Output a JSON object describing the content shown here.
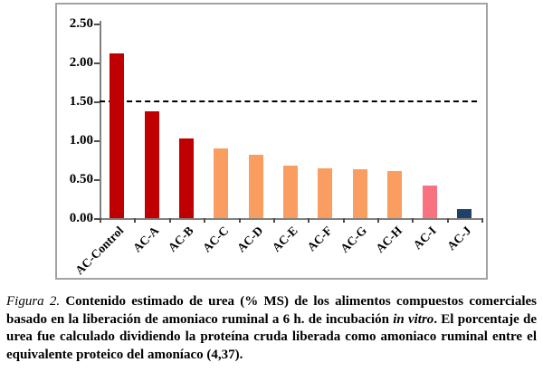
{
  "chart_data": {
    "type": "bar",
    "categories": [
      "AC-Control",
      "AC-A",
      "AC-B",
      "AC-C",
      "AC-D",
      "AC-E",
      "AC-F",
      "AC-G",
      "AC-H",
      "AC-I",
      "AC-J"
    ],
    "values": [
      2.12,
      1.37,
      1.02,
      0.89,
      0.81,
      0.68,
      0.64,
      0.63,
      0.6,
      0.42,
      0.12
    ],
    "bar_colors": [
      "#C00000",
      "#C00000",
      "#C00000",
      "#FA9D60",
      "#FA9D60",
      "#FA9D60",
      "#FA9D60",
      "#FA9D60",
      "#FA9D60",
      "#F8737F",
      "#1F4268"
    ],
    "title": "",
    "xlabel": "",
    "ylabel": "",
    "ylim": [
      0,
      2.5
    ],
    "y_ticks": [
      "0.00",
      "0.50",
      "1.00",
      "1.50",
      "2.00",
      "2.50"
    ],
    "y_tick_step": 0.5,
    "reference_line_y": 1.5,
    "reference_line_style": "dashed",
    "grid": false,
    "legend": "none",
    "x_tick_label_rotation_deg": 45
  },
  "colors": {
    "dark_red": "#C00000",
    "orange": "#FA9D60",
    "pink": "#F8737F",
    "navy": "#1F4268",
    "frame_border": "#A3A3A3",
    "axis": "#808080",
    "reference_line": "#000000"
  },
  "caption": {
    "label": "Figura 2.",
    "text_1": " Contenido estimado de urea (% MS) de los alimentos compuestos comerciales basado en la liberación de amoniaco ruminal a 6 h. de incubación ",
    "italic_term": "in vitro",
    "text_2": ". El porcentaje de urea fue calculado dividiendo la proteína cruda liberada como amoniaco ruminal entre el equivalente proteico del amoníaco (4,37)."
  }
}
